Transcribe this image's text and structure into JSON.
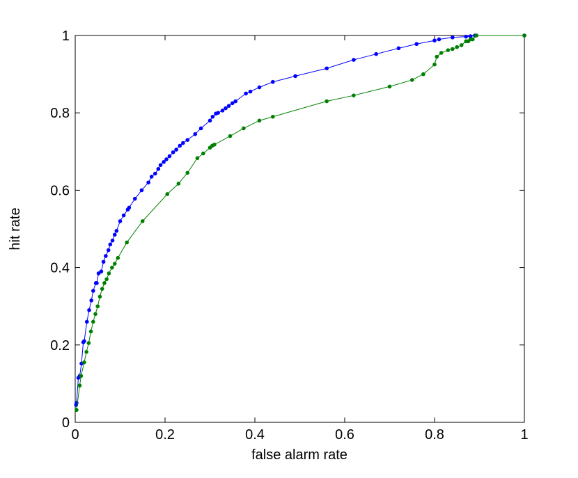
{
  "chart_data": {
    "type": "line",
    "xlabel": "false alarm rate",
    "ylabel": "hit rate",
    "xlim": [
      0,
      1
    ],
    "ylim": [
      0,
      1
    ],
    "xticks": [
      0,
      0.2,
      0.4,
      0.6,
      0.8,
      1
    ],
    "yticks": [
      0,
      0.2,
      0.4,
      0.6,
      0.8,
      1
    ],
    "series": [
      {
        "color": "#0000ff",
        "x": [
          0.002,
          0.003,
          0.007,
          0.01,
          0.014,
          0.018,
          0.02,
          0.026,
          0.031,
          0.036,
          0.04,
          0.046,
          0.048,
          0.052,
          0.058,
          0.063,
          0.068,
          0.074,
          0.078,
          0.083,
          0.088,
          0.092,
          0.1,
          0.108,
          0.117,
          0.12,
          0.133,
          0.148,
          0.163,
          0.17,
          0.178,
          0.185,
          0.19,
          0.197,
          0.203,
          0.21,
          0.218,
          0.225,
          0.233,
          0.24,
          0.25,
          0.267,
          0.28,
          0.3,
          0.306,
          0.313,
          0.318,
          0.328,
          0.335,
          0.342,
          0.35,
          0.357,
          0.38,
          0.39,
          0.41,
          0.44,
          0.49,
          0.56,
          0.62,
          0.67,
          0.72,
          0.76,
          0.8,
          0.81,
          0.84,
          0.87,
          0.88,
          0.89,
          0.893,
          1
        ],
        "values": [
          0.045,
          0.05,
          0.115,
          0.12,
          0.152,
          0.207,
          0.21,
          0.26,
          0.29,
          0.315,
          0.34,
          0.36,
          0.36,
          0.385,
          0.39,
          0.415,
          0.43,
          0.445,
          0.46,
          0.47,
          0.485,
          0.495,
          0.52,
          0.535,
          0.55,
          0.555,
          0.578,
          0.6,
          0.62,
          0.635,
          0.643,
          0.655,
          0.665,
          0.673,
          0.68,
          0.688,
          0.698,
          0.705,
          0.715,
          0.722,
          0.73,
          0.745,
          0.76,
          0.78,
          0.79,
          0.798,
          0.8,
          0.806,
          0.812,
          0.818,
          0.825,
          0.83,
          0.85,
          0.855,
          0.866,
          0.88,
          0.895,
          0.915,
          0.937,
          0.952,
          0.967,
          0.978,
          0.987,
          0.99,
          0.995,
          0.997,
          0.998,
          1,
          1,
          1
        ]
      },
      {
        "color": "#008000",
        "x": [
          0.003,
          0.01,
          0.013,
          0.02,
          0.025,
          0.03,
          0.035,
          0.04,
          0.045,
          0.05,
          0.055,
          0.06,
          0.065,
          0.07,
          0.075,
          0.082,
          0.088,
          0.095,
          0.115,
          0.15,
          0.205,
          0.23,
          0.25,
          0.272,
          0.285,
          0.3,
          0.305,
          0.31,
          0.345,
          0.375,
          0.41,
          0.44,
          0.56,
          0.62,
          0.7,
          0.75,
          0.775,
          0.8,
          0.805,
          0.815,
          0.83,
          0.84,
          0.85,
          0.86,
          0.87,
          0.875,
          0.88,
          0.885,
          0.893,
          1
        ],
        "values": [
          0.032,
          0.095,
          0.12,
          0.155,
          0.182,
          0.205,
          0.235,
          0.26,
          0.28,
          0.3,
          0.325,
          0.345,
          0.36,
          0.37,
          0.385,
          0.4,
          0.41,
          0.425,
          0.465,
          0.52,
          0.59,
          0.617,
          0.645,
          0.683,
          0.695,
          0.71,
          0.715,
          0.718,
          0.74,
          0.76,
          0.78,
          0.79,
          0.83,
          0.845,
          0.868,
          0.885,
          0.9,
          0.925,
          0.945,
          0.955,
          0.962,
          0.965,
          0.97,
          0.975,
          0.985,
          0.985,
          0.99,
          0.99,
          1,
          1
        ]
      }
    ]
  }
}
